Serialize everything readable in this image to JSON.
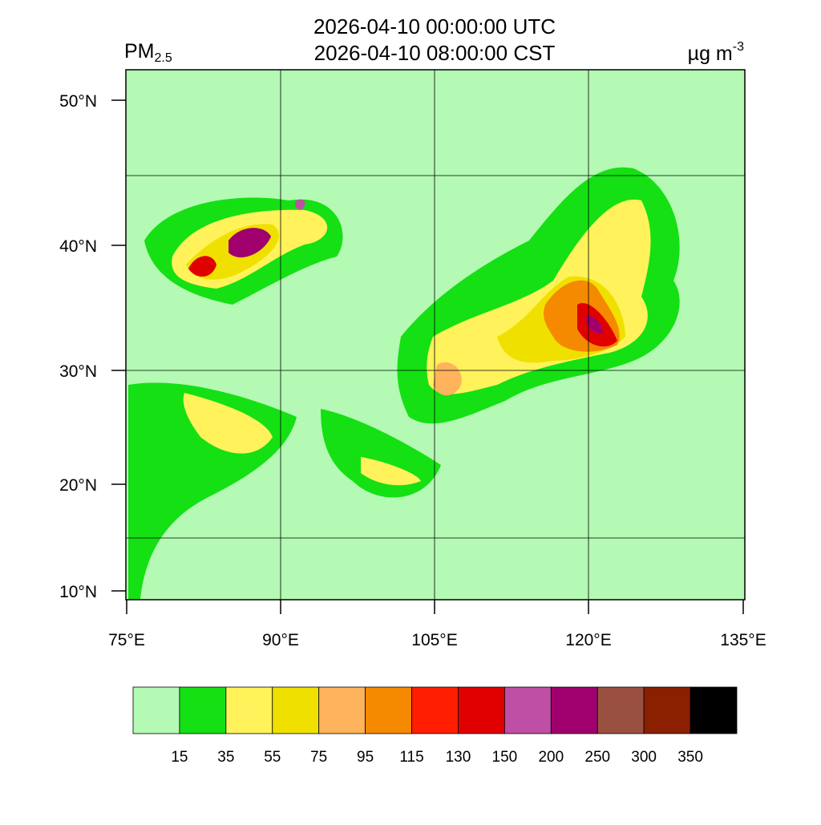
{
  "title": {
    "line1": "2026-04-10 00:00:00 UTC",
    "line2": "2026-04-10 08:00:00 CST"
  },
  "variable": {
    "name": "PM",
    "subscript": "2.5"
  },
  "units": {
    "base": "µg m",
    "superscript": "-3"
  },
  "lat_labels": [
    "50°N",
    "40°N",
    "30°N",
    "20°N",
    "10°N"
  ],
  "lon_labels": [
    "75°E",
    "90°E",
    "105°E",
    "120°E",
    "135°E"
  ],
  "colorbar": {
    "colors": [
      "#b4f9b4",
      "#14e014",
      "#fff25a",
      "#f0e000",
      "#ffb35c",
      "#f58a00",
      "#ff1e00",
      "#e00000",
      "#be4fa5",
      "#a0006e",
      "#9a5040",
      "#8a2000",
      "#000000"
    ],
    "labels": [
      15,
      35,
      55,
      75,
      95,
      115,
      130,
      150,
      200,
      250,
      300,
      350
    ]
  }
}
